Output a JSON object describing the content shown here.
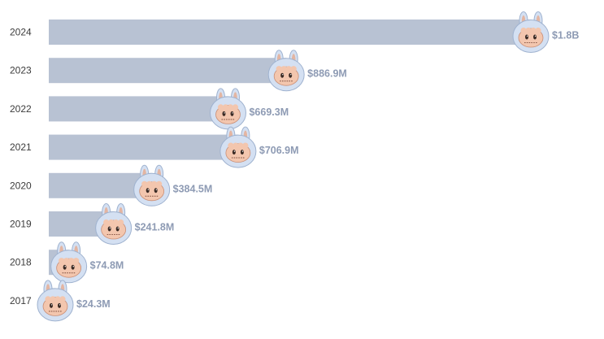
{
  "colors": {
    "bar": "#b8c2d3",
    "value_text": "#8e9bb4",
    "year_text": "#3b3b3b",
    "mascot_hood": "#d4e0f2",
    "mascot_hood_outline": "#9fb2cf",
    "mascot_ear_inner": "#e3b5a2",
    "mascot_face": "#f3c6ae",
    "mascot_face_outline": "#c98e75"
  },
  "icon": "mascot-bunny-hood-icon",
  "chart_data": {
    "type": "bar",
    "orientation": "horizontal",
    "title": "",
    "xlabel": "",
    "ylabel": "",
    "categories": [
      "2024",
      "2023",
      "2022",
      "2021",
      "2020",
      "2019",
      "2018",
      "2017"
    ],
    "values": [
      1800,
      886.9,
      669.3,
      706.9,
      384.5,
      241.8,
      74.8,
      24.3
    ],
    "value_unit": "$M",
    "value_labels": [
      "$1.8B",
      "$886.9M",
      "$669.3M",
      "$706.9M",
      "$384.5M",
      "$241.8M",
      "$74.8M",
      "$24.3M"
    ],
    "xlim": [
      0,
      1800
    ],
    "grid": false,
    "legend": "none"
  }
}
